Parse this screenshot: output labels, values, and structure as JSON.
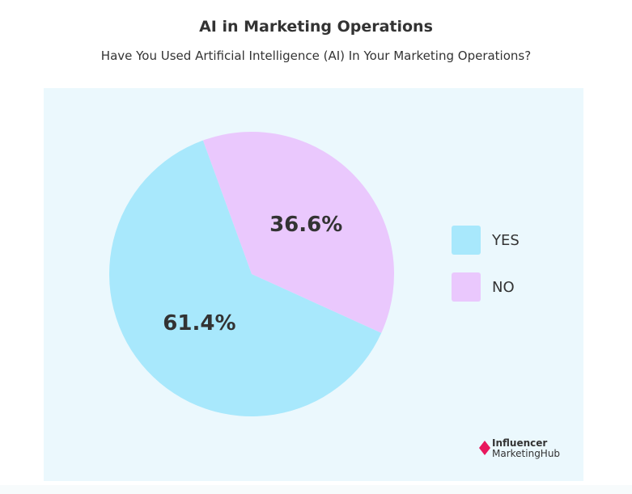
{
  "chart_data": {
    "type": "pie",
    "title": "AI in Marketing Operations",
    "subtitle": "Have You Used Artificial Intelligence (AI) In Your Marketing Operations?",
    "slices": [
      {
        "label": "YES",
        "value": 61.4,
        "value_label": "61.4%",
        "color": "#a8e8fc"
      },
      {
        "label": "NO",
        "value": 36.6,
        "value_label": "36.6%",
        "color": "#eac8fd"
      }
    ],
    "legend_position": "right"
  },
  "colors": {
    "panel_background": "#ebf8fd",
    "text": "#333333",
    "logo_accent": "#e8175d"
  },
  "logo": {
    "line1": "Influencer",
    "line2": "MarketingHub",
    "icon": "diamond-arrow-icon"
  }
}
